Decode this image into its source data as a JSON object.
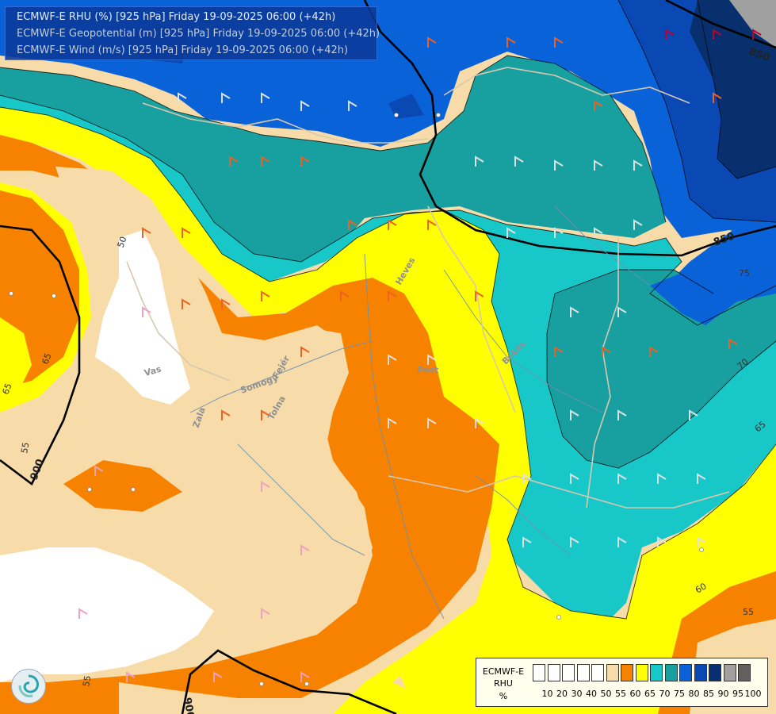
{
  "titles": [
    "ECMWF-E RHU (%) [925 hPa] Friday 19-09-2025 06:00 (+42h)",
    "ECMWF-E Geopotential (m) [925 hPa] Friday 19-09-2025 06:00 (+42h)",
    "ECMWF-E Wind (m/s) [925 hPa] Friday 19-09-2025 06:00 (+42h)"
  ],
  "title_colors": [
    "#ffffff",
    "#d8d8d8",
    "#d8d8d8"
  ],
  "legend": {
    "line1": "ECMWF-E",
    "line2": "RHU",
    "line3": "%",
    "ticks": [
      "10",
      "20",
      "30",
      "40",
      "50",
      "55",
      "60",
      "65",
      "70",
      "75",
      "80",
      "85",
      "90",
      "95",
      "100"
    ],
    "colors": [
      "#ffffff",
      "#ffffff",
      "#ffffff",
      "#ffffff",
      "#ffffff",
      "#f7dcaa",
      "#f78200",
      "#ffff00",
      "#18c8c8",
      "#18a0a0",
      "#0a62d8",
      "#0a48b4",
      "#08306e",
      "#a0a0a0",
      "#606060"
    ]
  },
  "contour_labels": {
    "geopotential": [
      "900",
      "850",
      "850",
      "900",
      "900"
    ],
    "rhu": [
      "50",
      "65",
      "65",
      "55",
      "75",
      "70",
      "65",
      "60",
      "55",
      "55"
    ]
  },
  "place_labels": [
    "Vas",
    "Somogy",
    "Fejér",
    "Tolna",
    "Zala",
    "Pest",
    "Békés",
    "Heves"
  ],
  "logo_icon": "ecmwf-swirl-icon"
}
